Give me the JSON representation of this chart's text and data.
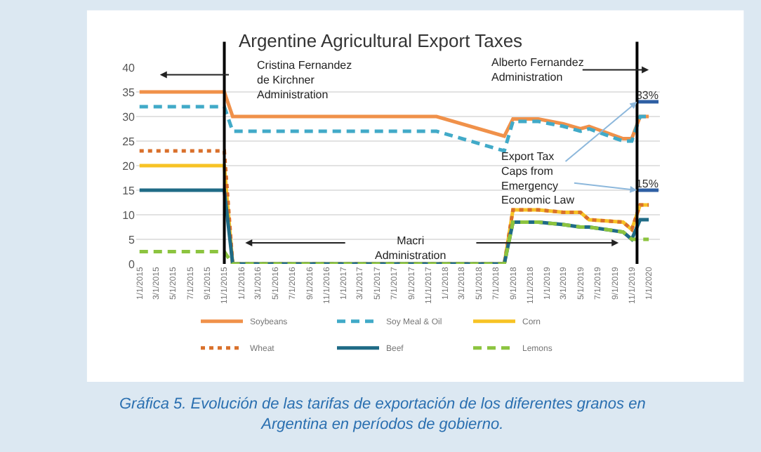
{
  "chart_data": {
    "type": "line",
    "title": "Argentine Agricultural Export Taxes",
    "annotations": [
      "Cristina Fernandez\nde Kirchner\nAdministration",
      "Macri\nAdministration",
      "Alberto Fernandez\nAdministration",
      {
        "text": "Export Tax\nCaps from\nEmergency\nEconomic Law",
        "x": "2019-11-20",
        "y": 33
      },
      "Gráfica 5. Evolución de las tarifas de exportación de los diferentes granos en\nArgentina en períodos de gobierno."
    ],
    "xlim": [
      "2014-12-20",
      "2020-02-10"
    ],
    "xticks": [
      {
        "value": "2015-01-01",
        "label": "1/1/2015"
      },
      {
        "value": "2015-03-01",
        "label": "3/1/2015"
      },
      {
        "value": "2015-05-01",
        "label": "5/1/2015"
      },
      {
        "value": "2015-07-01",
        "label": "7/1/2015"
      },
      {
        "value": "2015-09-01",
        "label": "9/1/2015"
      },
      {
        "value": "2015-11-01",
        "label": "11/1/2015"
      },
      {
        "value": "2016-01-01",
        "label": "1/1/2016"
      },
      {
        "value": "2016-03-01",
        "label": "3/1/2016"
      },
      {
        "value": "2016-05-01",
        "label": "5/1/2016"
      },
      {
        "value": "2016-07-01",
        "label": "7/1/2016"
      },
      {
        "value": "2016-09-01",
        "label": "9/1/2016"
      },
      {
        "value": "2016-11-01",
        "label": "11/1/2016"
      },
      {
        "value": "2017-01-01",
        "label": "1/1/2017"
      },
      {
        "value": "2017-03-01",
        "label": "3/1/2017"
      },
      {
        "value": "2017-05-01",
        "label": "5/1/2017"
      },
      {
        "value": "2017-07-01",
        "label": "7/1/2017"
      },
      {
        "value": "2017-09-01",
        "label": "9/1/2017"
      },
      {
        "value": "2017-11-01",
        "label": "11/1/2017"
      },
      {
        "value": "2018-01-01",
        "label": "1/1/2018"
      },
      {
        "value": "2018-03-01",
        "label": "3/1/2018"
      },
      {
        "value": "2018-05-01",
        "label": "5/1/2018"
      },
      {
        "value": "2018-07-01",
        "label": "7/1/2018"
      },
      {
        "value": "2018-09-01",
        "label": "9/1/2018"
      },
      {
        "value": "2018-11-01",
        "label": "11/1/2018"
      },
      {
        "value": "2019-01-01",
        "label": "1/1/2019"
      },
      {
        "value": "2019-03-01",
        "label": "3/1/2019"
      },
      {
        "value": "2019-05-01",
        "label": "5/1/2019"
      },
      {
        "value": "2019-07-01",
        "label": "7/1/2019"
      },
      {
        "value": "2019-09-01",
        "label": "9/1/2019"
      },
      {
        "value": "2019-11-01",
        "label": "11/1/2019"
      },
      {
        "value": "2020-01-01",
        "label": "1/1/2020"
      }
    ],
    "ylim": [
      0,
      40
    ],
    "yticks": [
      0,
      5,
      10,
      15,
      20,
      25,
      30,
      35,
      40
    ],
    "grid": "y",
    "legend": "bottom",
    "marker": "none",
    "ref_lines": [
      {
        "axis": "x",
        "value": "2015-11-01",
        "color": "#000000"
      },
      {
        "axis": "x",
        "value": "2019-11-20",
        "color": "#000000"
      }
    ],
    "series": [
      {
        "name": "Soybeans",
        "color": "#f0914a",
        "line_style": "solid",
        "x": [
          "2015-01",
          "2015-11",
          "2015-12",
          "2017-12",
          "2018-08",
          "2018-09",
          "2018-12",
          "2019-03",
          "2019-05",
          "2019-06",
          "2019-10",
          "2019-11",
          "2019-12",
          "2020-01"
        ],
        "values": [
          35,
          35,
          30,
          30,
          26,
          29.5,
          29.5,
          28.5,
          27.5,
          28,
          25.5,
          25.5,
          30,
          30
        ]
      },
      {
        "name": "Soy Meal & Oil",
        "color": "#41aac8",
        "line_style": "dashed",
        "x": [
          "2015-01",
          "2015-11",
          "2015-12",
          "2017-12",
          "2018-08",
          "2018-09",
          "2018-12",
          "2019-03",
          "2019-05",
          "2019-06",
          "2019-10",
          "2019-11",
          "2019-12",
          "2020-01"
        ],
        "values": [
          32,
          32,
          27,
          27,
          23,
          29,
          29,
          28,
          27,
          27.5,
          25,
          25,
          30,
          30
        ]
      },
      {
        "name": "Corn",
        "color": "#f7c325",
        "line_style": "solid",
        "x": [
          "2015-01",
          "2015-11",
          "2015-12",
          "2018-08",
          "2018-09",
          "2018-12",
          "2019-03",
          "2019-05",
          "2019-06",
          "2019-10",
          "2019-11",
          "2019-12",
          "2020-01"
        ],
        "values": [
          20,
          20,
          0,
          0,
          11,
          11,
          10.5,
          10.5,
          9,
          8.5,
          7,
          12,
          12
        ]
      },
      {
        "name": "Wheat",
        "color": "#d9702b",
        "line_style": "dotted",
        "x": [
          "2015-01",
          "2015-11",
          "2015-12",
          "2018-08",
          "2018-09",
          "2018-12",
          "2019-03",
          "2019-05",
          "2019-06",
          "2019-10",
          "2019-11",
          "2019-12",
          "2020-01"
        ],
        "values": [
          23,
          23,
          0,
          0,
          11,
          11,
          10.5,
          10.5,
          9,
          8.5,
          7,
          12,
          12
        ]
      },
      {
        "name": "Beef",
        "color": "#1f6b86",
        "line_style": "solid",
        "x": [
          "2015-01",
          "2015-11",
          "2015-12",
          "2018-08",
          "2018-09",
          "2018-12",
          "2019-03",
          "2019-05",
          "2019-06",
          "2019-10",
          "2019-11",
          "2019-12",
          "2020-01"
        ],
        "values": [
          15,
          15,
          0,
          0,
          8.5,
          8.5,
          8,
          7.5,
          7.5,
          6.5,
          5,
          9,
          9
        ]
      },
      {
        "name": "Lemons",
        "color": "#8cc43f",
        "line_style": "dashed",
        "x": [
          "2015-01",
          "2015-11",
          "2015-12",
          "2018-08",
          "2018-09",
          "2018-12",
          "2019-03",
          "2019-05",
          "2019-06",
          "2019-10",
          "2019-11",
          "2019-12",
          "2020-01"
        ],
        "values": [
          2.5,
          2.5,
          0,
          0,
          8.5,
          8.5,
          8,
          7.5,
          7.5,
          6.5,
          5,
          5,
          5
        ]
      },
      {
        "color": "#2e5fa3",
        "line_style": "solid",
        "x": [
          "2019-11-20",
          "2020-02-05"
        ],
        "values": [
          33,
          33
        ],
        "value_labels": [
          null,
          "33%"
        ]
      },
      {
        "color": "#2e5fa3",
        "line_style": "solid",
        "x": [
          "2019-11-20",
          "2020-02-05"
        ],
        "values": [
          15,
          15
        ],
        "value_labels": [
          null,
          "15%"
        ]
      }
    ]
  }
}
